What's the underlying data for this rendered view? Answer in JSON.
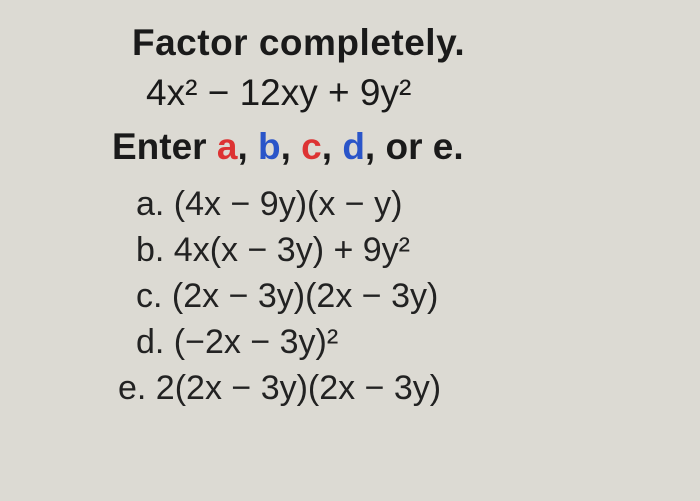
{
  "colors": {
    "background": "#dcdad3",
    "text": "#1a1a1a",
    "red": "#d33",
    "blue": "#2a55c9"
  },
  "typography": {
    "family": "Arial, Helvetica, sans-serif",
    "title_fontsize": 37,
    "title_weight": "bold",
    "expression_fontsize": 37,
    "instruction_fontsize": 37,
    "option_fontsize": 34,
    "option_lineheight": 1.35
  },
  "title": "Factor completely.",
  "expression": "4x² − 12xy + 9y²",
  "instruction": {
    "prefix": "Enter ",
    "a": "a",
    "sep1": ", ",
    "b": "b",
    "sep2": ", ",
    "c": "c",
    "sep3": ", ",
    "d": "d",
    "sep4": ", or ",
    "e": "e",
    "suffix": "."
  },
  "options": {
    "a": "a. (4x − 9y)(x − y)",
    "b": "b. 4x(x − 3y) + 9y²",
    "c": "c. (2x − 3y)(2x − 3y)",
    "d": "d. (−2x − 3y)²",
    "e": "e. 2(2x − 3y)(2x − 3y)"
  }
}
